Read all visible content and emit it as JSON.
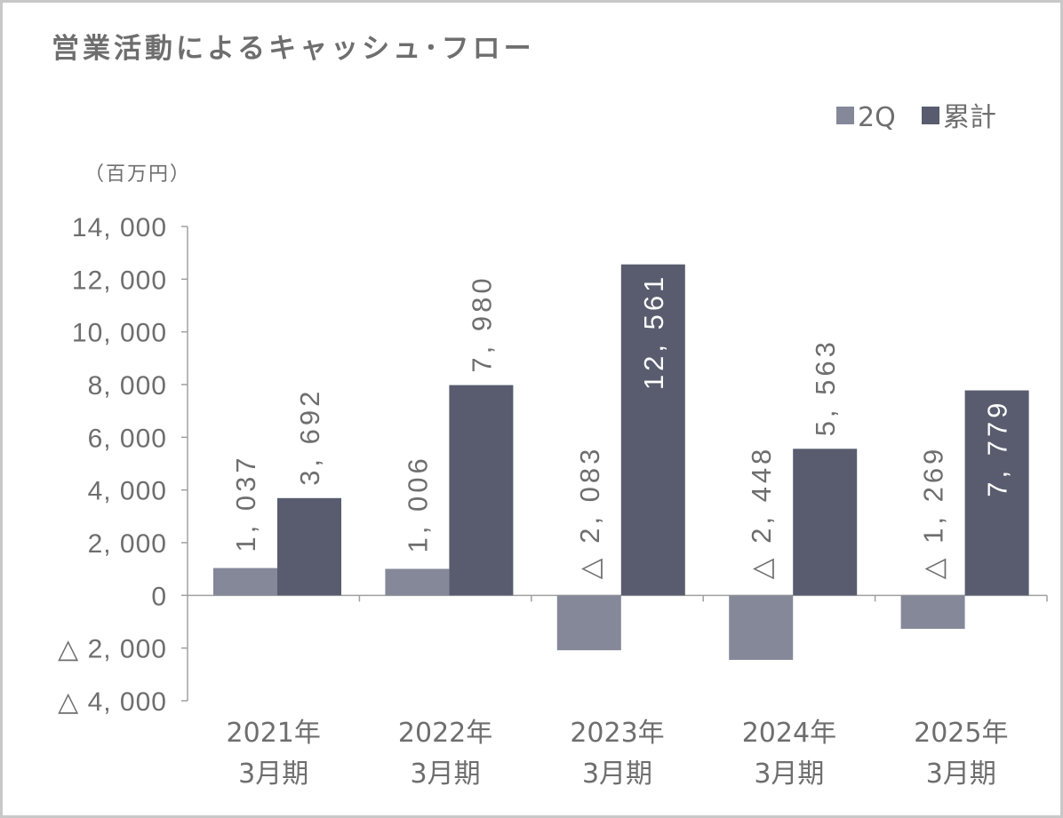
{
  "chart_data": {
    "type": "bar",
    "title": "営業活動によるキャッシュ･フロー",
    "unit": "（百万円）",
    "categories": [
      [
        "2021年",
        "3月期"
      ],
      [
        "2022年",
        "3月期"
      ],
      [
        "2023年",
        "3月期"
      ],
      [
        "2024年",
        "3月期"
      ],
      [
        "2025年",
        "3月期"
      ]
    ],
    "series": [
      {
        "name": "2Q",
        "color": "#858899",
        "values": [
          1037,
          1006,
          -2083,
          -2448,
          -1269
        ],
        "labels": [
          "1, 037",
          "1, 006",
          "△ 2, 083",
          "△ 2, 448",
          "△ 1, 269"
        ]
      },
      {
        "name": "累計",
        "color": "#585c6e",
        "values": [
          3692,
          7980,
          12561,
          5563,
          7779
        ],
        "labels": [
          "3, 692",
          "7, 980",
          "12, 561",
          "5, 563",
          "7, 779"
        ]
      }
    ],
    "ylim": [
      -4000,
      14000
    ],
    "yticks": [
      {
        "value": 14000,
        "label": "14, 000"
      },
      {
        "value": 12000,
        "label": "12, 000"
      },
      {
        "value": 10000,
        "label": "10, 000"
      },
      {
        "value": 8000,
        "label": "8, 000"
      },
      {
        "value": 6000,
        "label": "6, 000"
      },
      {
        "value": 4000,
        "label": "4, 000"
      },
      {
        "value": 2000,
        "label": "2, 000"
      },
      {
        "value": 0,
        "label": "0"
      },
      {
        "value": -2000,
        "label": "△ 2, 000"
      },
      {
        "value": -4000,
        "label": "△ 4, 000"
      }
    ],
    "legend_position": "top-right",
    "grid": false,
    "axis_color": "#a0a0a0",
    "text_color": "#6e6e6e"
  }
}
